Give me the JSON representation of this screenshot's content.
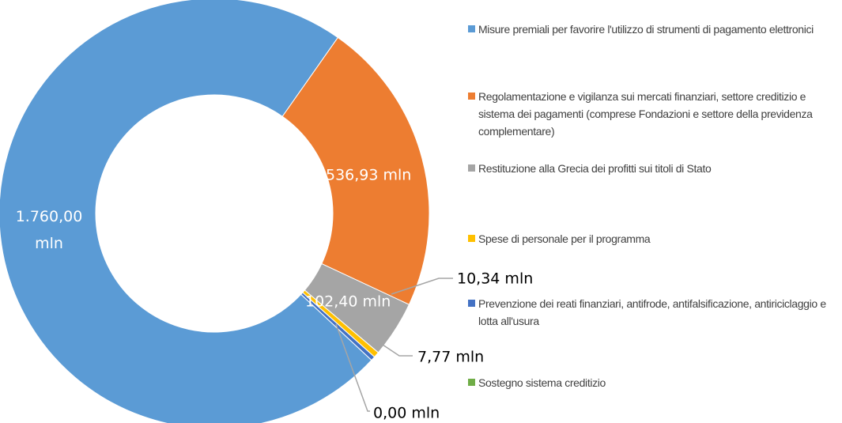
{
  "chart_data": {
    "type": "donut",
    "series": [
      {
        "name": "Misure premiali per favorire l'utilizzo di strumenti di pagamento elettronici",
        "color": "#5b9bd5"
      },
      {
        "name": "Regolamentazione e vigilanza sui mercati finanziari, settore creditizio e sistema dei pagamenti (comprese Fondazioni e settore della previdenza complementare)",
        "color": "#ed7d31"
      },
      {
        "name": "Restituzione alla Grecia dei profitti sui titoli di Stato",
        "color": "#a5a5a5"
      },
      {
        "name": "Spese di personale per il programma",
        "color": "#ffc000"
      },
      {
        "name": "Prevenzione dei reati finanziari, antifrode, antifalsificazione, antiriciclaggio e lotta all'usura",
        "color": "#4472c4"
      },
      {
        "name": "Sostegno sistema creditizio",
        "color": "#70ad47"
      }
    ],
    "values": [
      1760.0,
      536.93,
      102.4,
      10.34,
      7.77,
      0.0
    ],
    "value_labels": [
      "1.760,00 mln",
      "536,93 mln",
      "102,40 mln",
      "10,34 mln",
      "7,77 mln",
      "0,00 mln"
    ]
  }
}
